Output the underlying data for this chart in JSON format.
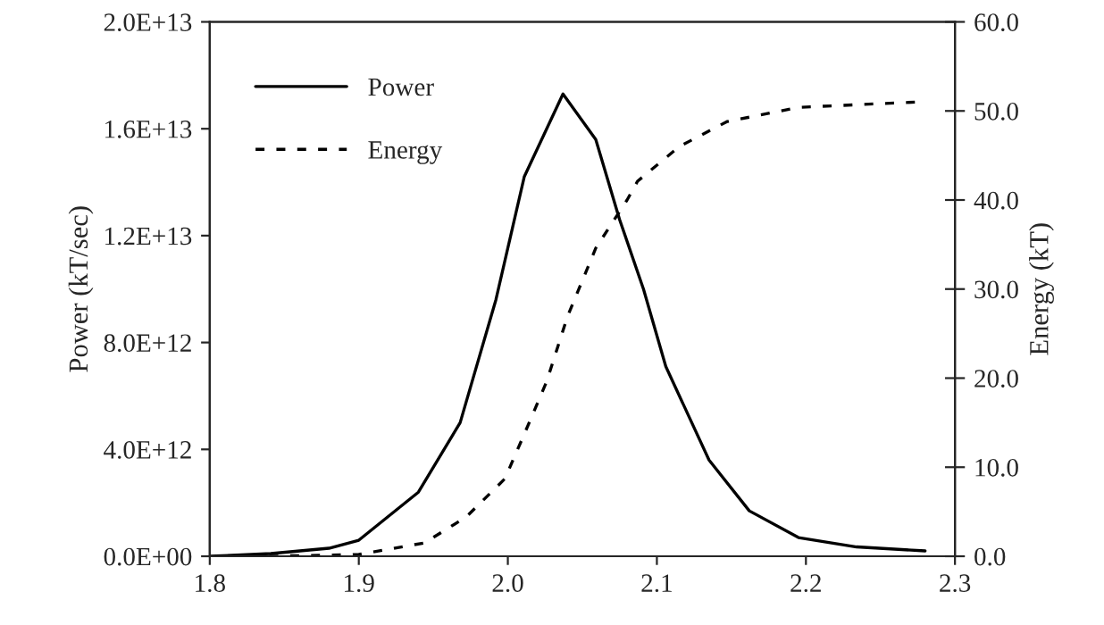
{
  "chart_data": {
    "type": "line",
    "ylabel": "Power (kT/sec)",
    "y2label": "Energy (kT)",
    "xlim": [
      1.8,
      2.3
    ],
    "xticks": [
      {
        "value": 1.8,
        "label": "1.8"
      },
      {
        "value": 1.9,
        "label": "1.9"
      },
      {
        "value": 2.0,
        "label": "2.0"
      },
      {
        "value": 2.1,
        "label": "2.1"
      },
      {
        "value": 2.2,
        "label": "2.2"
      },
      {
        "value": 2.3,
        "label": "2.3"
      }
    ],
    "ylim": [
      0,
      20000000000000.0
    ],
    "yticks": [
      {
        "value": 0,
        "label": "0.0E+00"
      },
      {
        "value": 4000000000000.0,
        "label": "4.0E+12"
      },
      {
        "value": 8000000000000.0,
        "label": "8.0E+12"
      },
      {
        "value": 12000000000000.0,
        "label": "1.2E+13"
      },
      {
        "value": 16000000000000.0,
        "label": "1.6E+13"
      },
      {
        "value": 20000000000000.0,
        "label": "2.0E+13"
      }
    ],
    "y2lim": [
      0,
      60
    ],
    "y2ticks": [
      {
        "value": 0,
        "label": "0.0"
      },
      {
        "value": 10,
        "label": "10.0"
      },
      {
        "value": 20,
        "label": "20.0"
      },
      {
        "value": 30,
        "label": "30.0"
      },
      {
        "value": 40,
        "label": "40.0"
      },
      {
        "value": 50,
        "label": "50.0"
      },
      {
        "value": 60,
        "label": "60.0"
      }
    ],
    "grid": false,
    "legend": "top left",
    "series": [
      {
        "name": "Power",
        "color": "#000000",
        "line_style": "solid",
        "x": [
          1.8,
          1.841,
          1.88,
          1.9,
          1.94,
          1.968,
          1.992,
          2.011,
          2.037,
          2.059,
          2.075,
          2.091,
          2.106,
          2.135,
          2.162,
          2.195,
          2.234,
          2.28
        ],
        "values": [
          0,
          100000000000.0,
          300000000000.0,
          600000000000.0,
          2400000000000.0,
          5000000000000.0,
          9600000000000.0,
          14200000000000.0,
          17300000000000.0,
          15600000000000.0,
          12600000000000.0,
          10000000000000.0,
          7100000000000.0,
          3600000000000.0,
          1700000000000.0,
          700000000000.0,
          350000000000.0,
          200000000000.0
        ]
      },
      {
        "name": "Energy",
        "color": "#000000",
        "line_style": "dashed",
        "axis": "y2",
        "x": [
          1.84,
          1.9,
          1.944,
          1.972,
          1.998,
          2.011,
          2.026,
          2.04,
          2.059,
          2.08,
          2.087,
          2.115,
          2.147,
          2.195,
          2.274
        ],
        "values": [
          0,
          0.2,
          1.5,
          4.4,
          8.7,
          13.7,
          19.6,
          26.9,
          34.6,
          40.0,
          42.1,
          46.0,
          48.8,
          50.4,
          51.0
        ]
      }
    ]
  }
}
